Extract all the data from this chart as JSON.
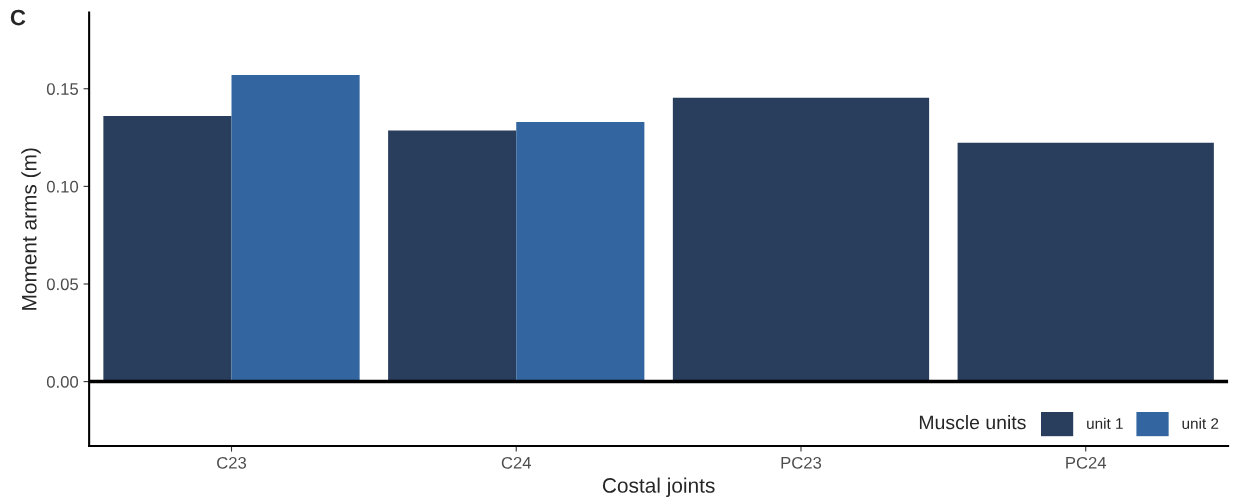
{
  "chart_data": {
    "type": "bar",
    "xlabel": "Costal joints",
    "ylabel": "Moment arms (m)",
    "legend_title": "Muscle units",
    "categories": [
      "C23",
      "C24",
      "PC23",
      "PC24"
    ],
    "series": [
      {
        "name": "unit 1",
        "color": "#293d5c",
        "values": [
          0.136,
          0.1286,
          0.1454,
          0.1224
        ]
      },
      {
        "name": "unit 2",
        "color": "#3366a0",
        "values": [
          0.157,
          0.133,
          null,
          null
        ]
      }
    ],
    "ylim": [
      -0.033,
      0.189
    ],
    "yticks": [
      {
        "value": 0,
        "label": "0.00"
      },
      0.05,
      {
        "value": 0.1,
        "label": "0.10"
      },
      0.15
    ],
    "ref_lines": [
      {
        "axis": "y",
        "value": 0,
        "color": "#000000"
      }
    ],
    "annotations": [
      "C"
    ],
    "grid": false,
    "legend": "bottom right"
  }
}
